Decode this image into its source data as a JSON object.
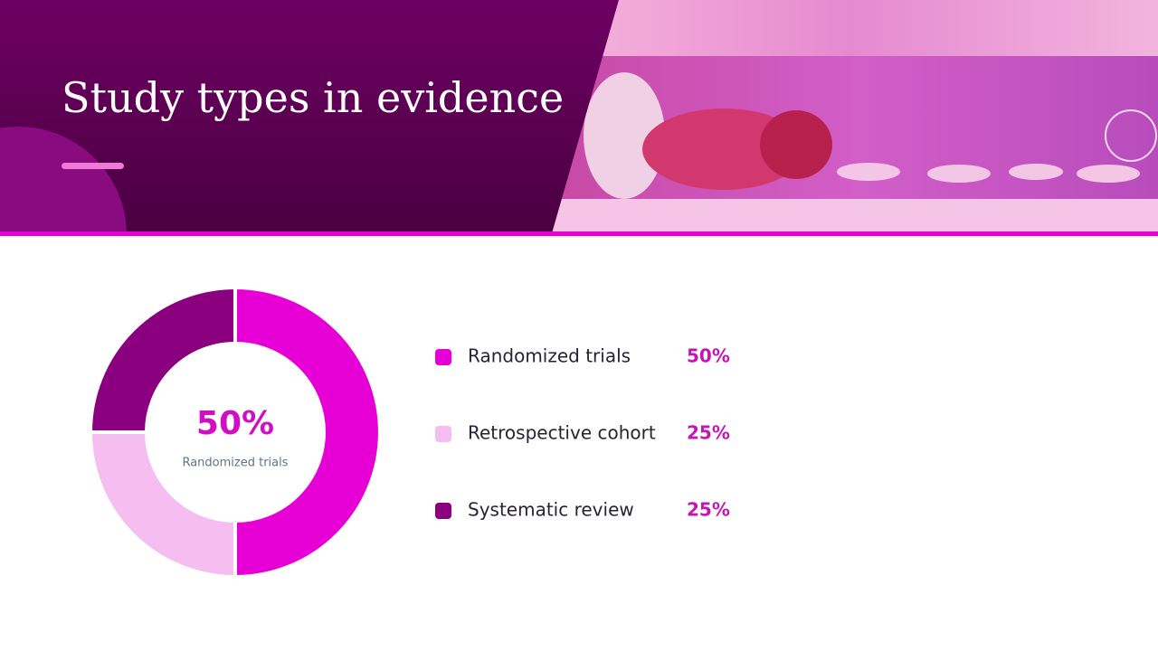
{
  "chart_data": {
    "type": "donut",
    "title": "Study types in evidence",
    "categories": [
      "Randomized trials",
      "Retrospective cohort",
      "Systematic review"
    ],
    "values": [
      50,
      25,
      25
    ],
    "value_labels": [
      "50%",
      "25%",
      "25%"
    ],
    "colors": [
      "#e600d6",
      "#f5bdf0",
      "#8a007e"
    ]
  }
}
